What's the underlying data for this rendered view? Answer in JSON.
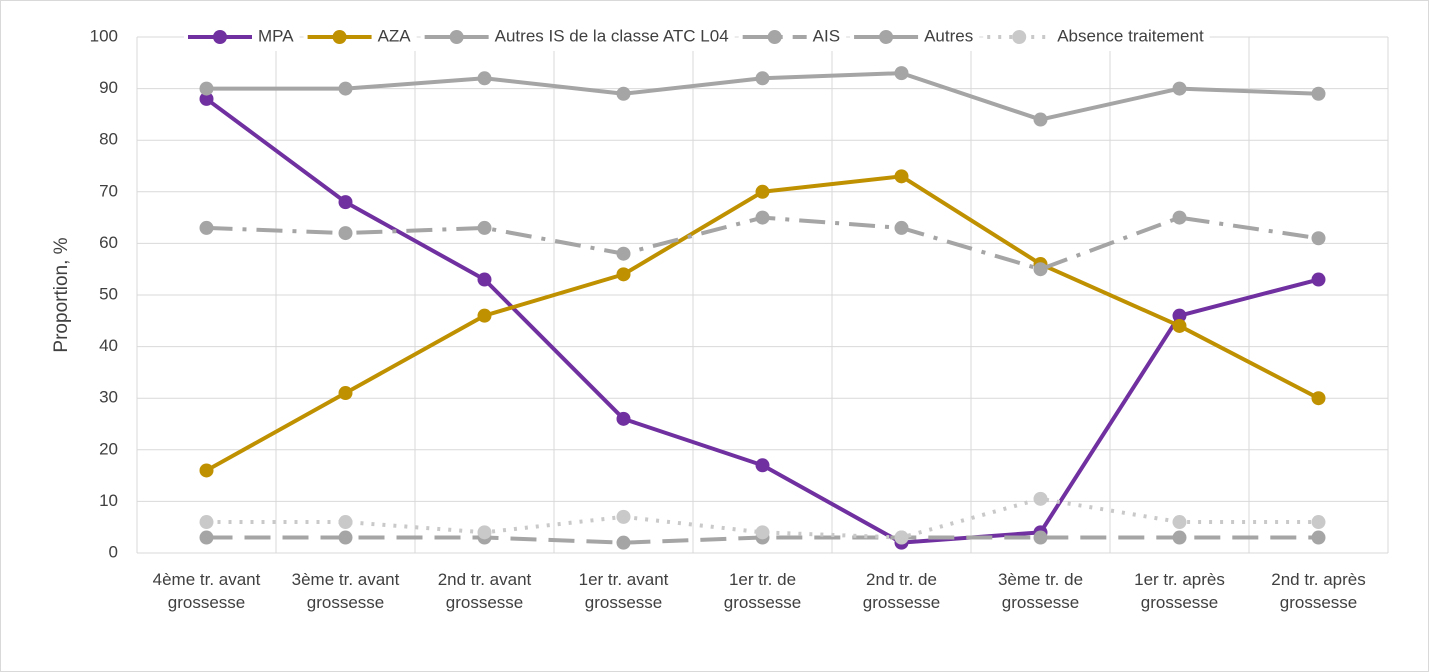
{
  "chart_data": {
    "type": "line",
    "y_label": "Proportion, %",
    "categories": [
      "4ème tr. avant grossesse",
      "3ème tr. avant grossesse",
      "2nd tr. avant grossesse",
      "1er tr. avant grossesse",
      "1er tr. de grossesse",
      "2nd tr. de grossesse",
      "3ème tr. de grossesse",
      "1er tr. après grossesse",
      "2nd tr. après grossesse"
    ],
    "series": [
      {
        "name": "MPA",
        "color": "#7030a0",
        "dash": "solid",
        "values": [
          88,
          68,
          53,
          26,
          17,
          2,
          4,
          46,
          53
        ]
      },
      {
        "name": "AZA",
        "color": "#bf9000",
        "dash": "solid",
        "values": [
          16,
          31,
          46,
          54,
          70,
          73,
          56,
          44,
          30
        ]
      },
      {
        "name": "Autres IS de la classe ATC L04",
        "color": "#a5a5a5",
        "dash": "solid",
        "values": [
          90,
          90,
          92,
          89,
          92,
          93,
          84,
          90,
          89
        ]
      },
      {
        "name": "AIS",
        "color": "#a5a5a5",
        "dash": "dashdot",
        "values": [
          63,
          62,
          63,
          58,
          65,
          63,
          55,
          65,
          61
        ]
      },
      {
        "name": "Autres",
        "color": "#a5a5a5",
        "dash": "dash",
        "values": [
          3,
          3,
          3,
          2,
          3,
          3,
          3,
          3,
          3
        ]
      },
      {
        "name": "Absence traitement",
        "color": "#c9c9c9",
        "dash": "dot",
        "values": [
          6,
          6,
          4,
          7,
          4,
          3,
          10.5,
          6,
          6
        ]
      }
    ],
    "ylim": [
      0,
      100
    ],
    "yticks": [
      0,
      10,
      20,
      30,
      40,
      50,
      60,
      70,
      80,
      90,
      100
    ],
    "grid": true,
    "legend": "top"
  }
}
